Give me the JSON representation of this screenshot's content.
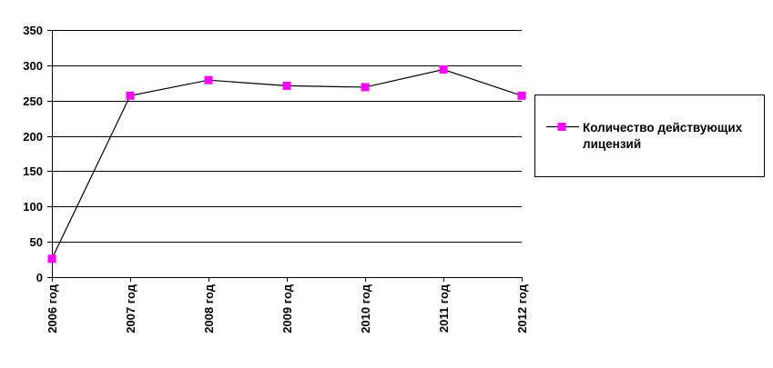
{
  "chart_data": {
    "type": "line",
    "categories": [
      "2006 год",
      "2007 год",
      "2008 год",
      "2009 год",
      "2010 год",
      "2011 год",
      "2012 год"
    ],
    "series": [
      {
        "name": "Количество действующих лицензий",
        "name_lines": [
          "Количество действующих",
          "лицензий"
        ],
        "values": [
          26,
          257,
          279,
          271,
          269,
          294,
          257
        ],
        "line_color": "#000000",
        "marker_color": "#ff00ff",
        "marker": "square"
      }
    ],
    "ylim": [
      0,
      350
    ],
    "yticks": [
      0,
      50,
      100,
      150,
      200,
      250,
      300,
      350
    ],
    "title": "",
    "xlabel": "",
    "ylabel": "",
    "grid": "horizontal",
    "legend_position": "right"
  }
}
